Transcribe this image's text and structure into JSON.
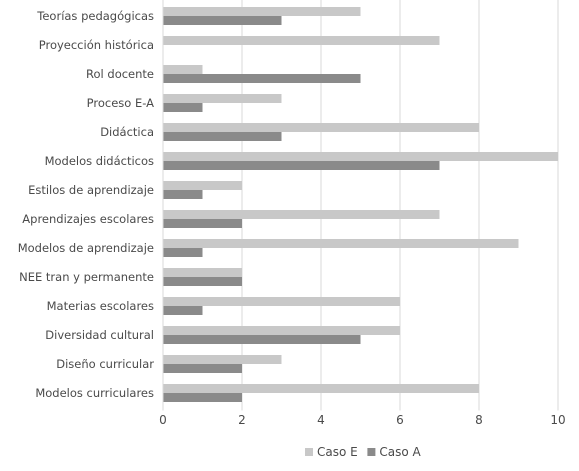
{
  "chart_data": {
    "type": "bar",
    "orientation": "horizontal",
    "categories": [
      "Teorías pedagógicas",
      "Proyección histórica",
      "Rol docente",
      "Proceso E-A",
      "Didáctica",
      "Modelos didácticos",
      "Estilos de aprendizaje",
      "Aprendizajes escolares",
      "Modelos de aprendizaje",
      "NEE tran y permanente",
      "Materias escolares",
      "Diversidad cultural",
      "Diseño curricular",
      "Modelos curriculares"
    ],
    "series": [
      {
        "name": "Caso E",
        "color": "#c8c8c8",
        "values": [
          5,
          7,
          1,
          3,
          8,
          10,
          2,
          7,
          9,
          2,
          6,
          6,
          3,
          8
        ]
      },
      {
        "name": "Caso A",
        "color": "#8a8a8a",
        "values": [
          3,
          0,
          5,
          1,
          3,
          7,
          1,
          2,
          1,
          2,
          1,
          5,
          2,
          2
        ]
      }
    ],
    "x_ticks": [
      0,
      2,
      4,
      6,
      8,
      10
    ],
    "xlim": [
      0,
      10
    ],
    "grid": "vertical",
    "legend": "bottom-center"
  }
}
